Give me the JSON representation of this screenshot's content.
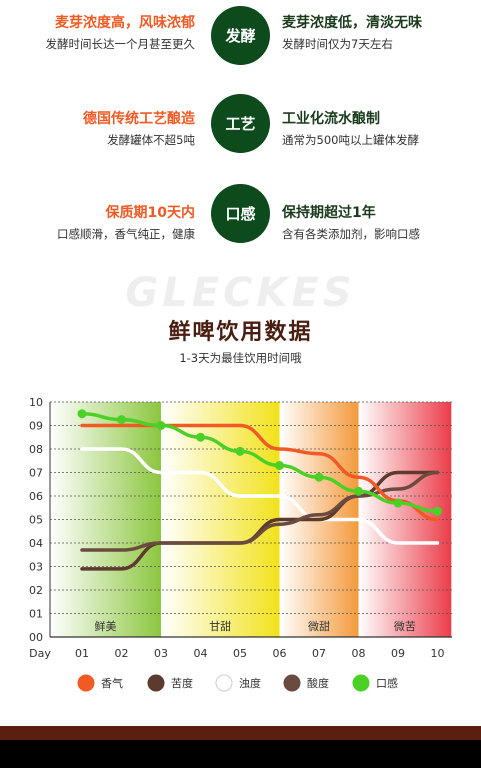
{
  "comparison": [
    {
      "left_title": "麦芽浓度高，风味浓郁",
      "left_sub": "发酵时间长达一个月甚至更久",
      "badge": "发酵",
      "right_title": "麦芽浓度低，清淡无味",
      "right_sub": "发酵时间仅为7天左右"
    },
    {
      "left_title": "德国传统工艺酿造",
      "left_sub": "发酵罐体不超5吨",
      "badge": "工艺",
      "right_title": "工业化流水酿制",
      "right_sub": "通常为500吨以上罐体发酵"
    },
    {
      "left_title": "保质期10天内",
      "left_sub": "口感顺滑，香气纯正，健康",
      "badge": "口感",
      "right_title": "保持期超过1年",
      "right_sub": "含有各类添加剂，影响口感"
    }
  ],
  "watermark": "GLECKES",
  "chart_data": {
    "type": "line",
    "title": "鲜啤饮用数据",
    "subtitle": "1-3天为最佳饮用时间哦",
    "xlabel": "Day",
    "x": [
      "01",
      "02",
      "03",
      "04",
      "05",
      "06",
      "07",
      "08",
      "09",
      "10"
    ],
    "yticks": [
      "00",
      "01",
      "02",
      "03",
      "04",
      "05",
      "06",
      "07",
      "08",
      "09",
      "10"
    ],
    "ylim": [
      0,
      10
    ],
    "grid": true,
    "phases": [
      {
        "label": "鲜美",
        "from": 1,
        "to": 3,
        "color": "#8cc63f"
      },
      {
        "label": "甘甜",
        "from": 3,
        "to": 6,
        "color": "#f2e21a"
      },
      {
        "label": "微甜",
        "from": 6,
        "to": 8,
        "color": "#f39a3b"
      },
      {
        "label": "微苦",
        "from": 8,
        "to": 10.35,
        "color": "#ea3d4a"
      }
    ],
    "series": [
      {
        "name": "香气",
        "color": "#f15a24",
        "values": [
          null,
          null,
          9.0,
          9.0,
          9.0,
          8.0,
          7.8,
          6.8,
          5.8,
          5.0
        ]
      },
      {
        "name": "苦度",
        "color": "#5c3a2e",
        "values": [
          2.9,
          2.9,
          4.0,
          4.0,
          4.0,
          5.0,
          5.0,
          6.0,
          7.0,
          7.0
        ]
      },
      {
        "name": "浊度",
        "color": "#ffffff",
        "values": [
          8.0,
          8.0,
          7.0,
          7.0,
          6.0,
          6.0,
          5.0,
          5.0,
          4.0,
          4.0
        ]
      },
      {
        "name": "酸度",
        "color": "#6b4a3f",
        "values": [
          3.7,
          3.7,
          4.0,
          4.0,
          4.0,
          4.8,
          5.2,
          6.0,
          6.3,
          7.0
        ]
      },
      {
        "name": "口感",
        "color": "#4cd026",
        "values": [
          9.5,
          9.25,
          9.0,
          8.5,
          7.9,
          7.3,
          6.8,
          6.2,
          5.7,
          5.35
        ]
      }
    ],
    "legend_position": "bottom"
  }
}
